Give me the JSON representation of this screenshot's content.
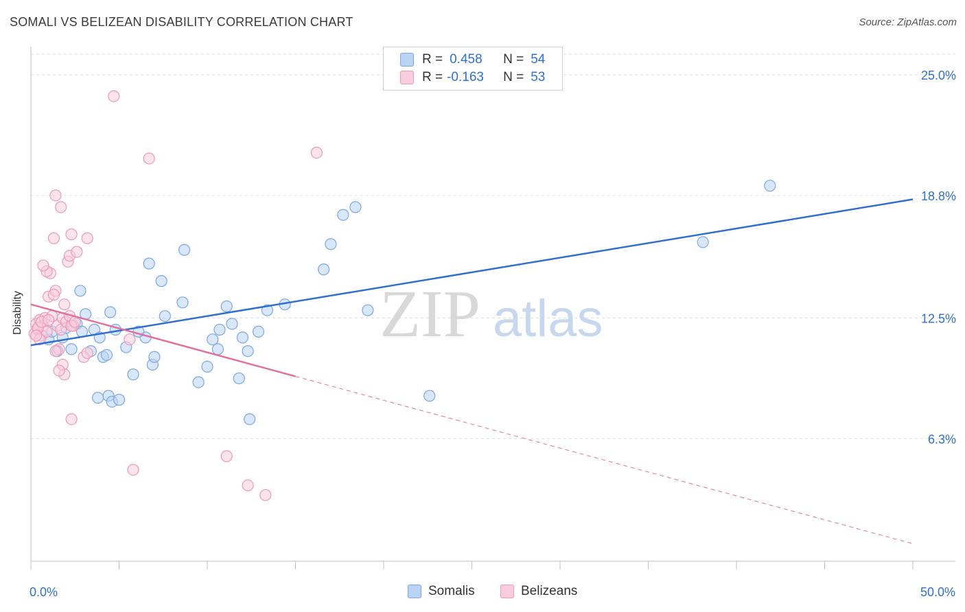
{
  "title": "SOMALI VS BELIZEAN DISABILITY CORRELATION CHART",
  "source": "Source: ZipAtlas.com",
  "watermark": {
    "zip": "ZIP",
    "atlas": "atlas"
  },
  "legend": {
    "rows": [
      {
        "r_label": "R =",
        "r_value": "0.458",
        "n_label": "N =",
        "n_value": "54",
        "color": "#b9d3f5"
      },
      {
        "r_label": "R =",
        "r_value": "-0.163",
        "n_label": "N =",
        "n_value": "53",
        "color": "#f9cddd"
      }
    ]
  },
  "bottom_legend": {
    "somalis": "Somalis",
    "belizeans": "Belizeans"
  },
  "chart_data": {
    "type": "scatter",
    "title": "SOMALI VS BELIZEAN DISABILITY CORRELATION CHART",
    "xlabel": "",
    "ylabel": "Disability",
    "xlim": [
      0,
      50
    ],
    "ylim": [
      0,
      26.2
    ],
    "x_tick_labels": [
      "0.0%",
      "50.0%"
    ],
    "y_ticks": [
      6.3,
      12.5,
      18.8,
      25.0
    ],
    "y_tick_labels": [
      "6.3%",
      "12.5%",
      "18.8%",
      "25.0%"
    ],
    "grid": true,
    "legend_position": "top-center",
    "series": [
      {
        "name": "Somalis",
        "color": "#7aa6e3",
        "fill": "#b9d3f5",
        "trend": {
          "x": [
            0,
            50
          ],
          "y": [
            11.1,
            18.6
          ],
          "color": "#2f6fd0"
        },
        "points": [
          [
            1.0,
            11.4
          ],
          [
            1.2,
            11.8
          ],
          [
            1.5,
            10.8
          ],
          [
            1.8,
            11.5
          ],
          [
            2.0,
            12.0
          ],
          [
            2.3,
            10.9
          ],
          [
            2.6,
            12.2
          ],
          [
            2.9,
            11.8
          ],
          [
            3.1,
            12.7
          ],
          [
            3.6,
            11.9
          ],
          [
            3.4,
            10.8
          ],
          [
            4.1,
            10.5
          ],
          [
            2.8,
            13.9
          ],
          [
            3.9,
            11.5
          ],
          [
            4.3,
            10.6
          ],
          [
            4.8,
            11.9
          ],
          [
            5.4,
            11.0
          ],
          [
            3.8,
            8.4
          ],
          [
            4.4,
            8.5
          ],
          [
            4.6,
            8.2
          ],
          [
            5.0,
            8.3
          ],
          [
            5.8,
            9.6
          ],
          [
            6.5,
            11.5
          ],
          [
            6.1,
            11.8
          ],
          [
            6.7,
            15.3
          ],
          [
            7.4,
            14.4
          ],
          [
            6.9,
            10.1
          ],
          [
            7.6,
            12.6
          ],
          [
            8.6,
            13.3
          ],
          [
            8.7,
            16.0
          ],
          [
            9.5,
            9.2
          ],
          [
            10.3,
            11.4
          ],
          [
            10.0,
            10.0
          ],
          [
            10.6,
            10.9
          ],
          [
            10.7,
            11.9
          ],
          [
            11.1,
            13.1
          ],
          [
            11.4,
            12.2
          ],
          [
            11.8,
            9.4
          ],
          [
            12.0,
            11.5
          ],
          [
            12.3,
            10.8
          ],
          [
            12.4,
            7.3
          ],
          [
            12.9,
            11.8
          ],
          [
            13.4,
            12.9
          ],
          [
            14.4,
            13.2
          ],
          [
            17.7,
            17.8
          ],
          [
            16.6,
            15.0
          ],
          [
            17.0,
            16.3
          ],
          [
            18.4,
            18.2
          ],
          [
            19.1,
            12.9
          ],
          [
            22.6,
            8.5
          ],
          [
            38.1,
            16.4
          ],
          [
            41.9,
            19.3
          ],
          [
            4.5,
            12.8
          ],
          [
            7.0,
            10.5
          ]
        ]
      },
      {
        "name": "Belizeans",
        "color": "#ee97b7",
        "fill": "#f9cddd",
        "trend": {
          "x": [
            0,
            15
          ],
          "y": [
            13.2,
            9.5
          ],
          "color": "#e07099"
        },
        "trend_dashed": {
          "x": [
            15,
            50
          ],
          "y": [
            9.5,
            0.9
          ]
        },
        "points": [
          [
            0.2,
            11.7
          ],
          [
            0.3,
            12.2
          ],
          [
            0.4,
            11.9
          ],
          [
            0.5,
            12.4
          ],
          [
            0.6,
            11.6
          ],
          [
            0.7,
            12.1
          ],
          [
            0.8,
            12.5
          ],
          [
            0.9,
            11.8
          ],
          [
            0.4,
            12.0
          ],
          [
            0.6,
            12.3
          ],
          [
            1.0,
            13.6
          ],
          [
            1.2,
            12.6
          ],
          [
            1.4,
            13.9
          ],
          [
            1.5,
            12.1
          ],
          [
            1.7,
            11.9
          ],
          [
            1.8,
            12.5
          ],
          [
            1.9,
            13.2
          ],
          [
            2.0,
            12.3
          ],
          [
            2.2,
            12.6
          ],
          [
            2.4,
            12.1
          ],
          [
            1.1,
            14.8
          ],
          [
            0.9,
            14.9
          ],
          [
            0.7,
            15.2
          ],
          [
            1.3,
            13.7
          ],
          [
            2.1,
            15.4
          ],
          [
            2.2,
            15.7
          ],
          [
            2.6,
            15.9
          ],
          [
            1.3,
            16.6
          ],
          [
            2.3,
            16.8
          ],
          [
            3.2,
            16.6
          ],
          [
            1.4,
            18.8
          ],
          [
            1.7,
            18.2
          ],
          [
            1.6,
            10.9
          ],
          [
            1.8,
            10.1
          ],
          [
            1.9,
            9.6
          ],
          [
            1.6,
            9.8
          ],
          [
            1.4,
            10.8
          ],
          [
            2.3,
            12.1
          ],
          [
            2.5,
            12.3
          ],
          [
            3.0,
            10.5
          ],
          [
            3.2,
            10.7
          ],
          [
            2.3,
            7.3
          ],
          [
            4.7,
            23.9
          ],
          [
            6.7,
            20.7
          ],
          [
            11.1,
            5.4
          ],
          [
            5.8,
            4.7
          ],
          [
            12.3,
            3.9
          ],
          [
            13.3,
            3.4
          ],
          [
            16.2,
            21.0
          ],
          [
            5.6,
            11.4
          ],
          [
            0.5,
            11.4
          ],
          [
            0.3,
            11.6
          ],
          [
            1.0,
            12.4
          ]
        ]
      }
    ]
  }
}
